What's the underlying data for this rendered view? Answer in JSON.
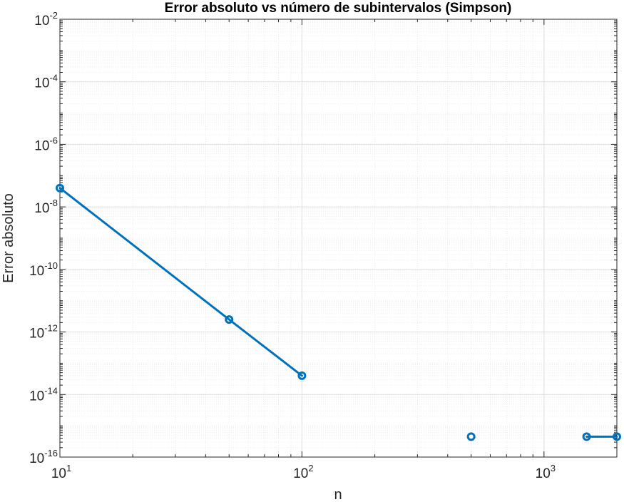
{
  "chart_data": {
    "type": "line",
    "title": "Error absoluto vs número de subintervalos (Simpson)",
    "xlabel": "n",
    "ylabel": "Error absoluto",
    "xscale": "log",
    "yscale": "log",
    "xlim": [
      10,
      2000
    ],
    "ylim": [
      1e-16,
      0.01
    ],
    "grid": true,
    "minor_grid": true,
    "x_ticks": [
      {
        "base": "10",
        "exp": "1",
        "value": 10
      },
      {
        "base": "10",
        "exp": "2",
        "value": 100
      },
      {
        "base": "10",
        "exp": "3",
        "value": 1000
      }
    ],
    "y_ticks": [
      {
        "base": "10",
        "exp": "-16",
        "value": 1e-16
      },
      {
        "base": "10",
        "exp": "-14",
        "value": 1e-14
      },
      {
        "base": "10",
        "exp": "-12",
        "value": 1e-12
      },
      {
        "base": "10",
        "exp": "-10",
        "value": 1e-10
      },
      {
        "base": "10",
        "exp": "-8",
        "value": 1e-08
      },
      {
        "base": "10",
        "exp": "-6",
        "value": 1e-06
      },
      {
        "base": "10",
        "exp": "-4",
        "value": 0.0001
      },
      {
        "base": "10",
        "exp": "-2",
        "value": 0.01
      }
    ],
    "series": [
      {
        "color": "#0072BD",
        "marker": "circle",
        "x": [
          10,
          50,
          100,
          500,
          1500,
          2000
        ],
        "y": [
          4e-08,
          2.5e-12,
          4e-14,
          null,
          4.5e-16,
          4.5e-16
        ]
      },
      {
        "color": "#0072BD",
        "marker": "circle",
        "x": [
          500
        ],
        "y": [
          4.5e-16
        ]
      }
    ]
  }
}
